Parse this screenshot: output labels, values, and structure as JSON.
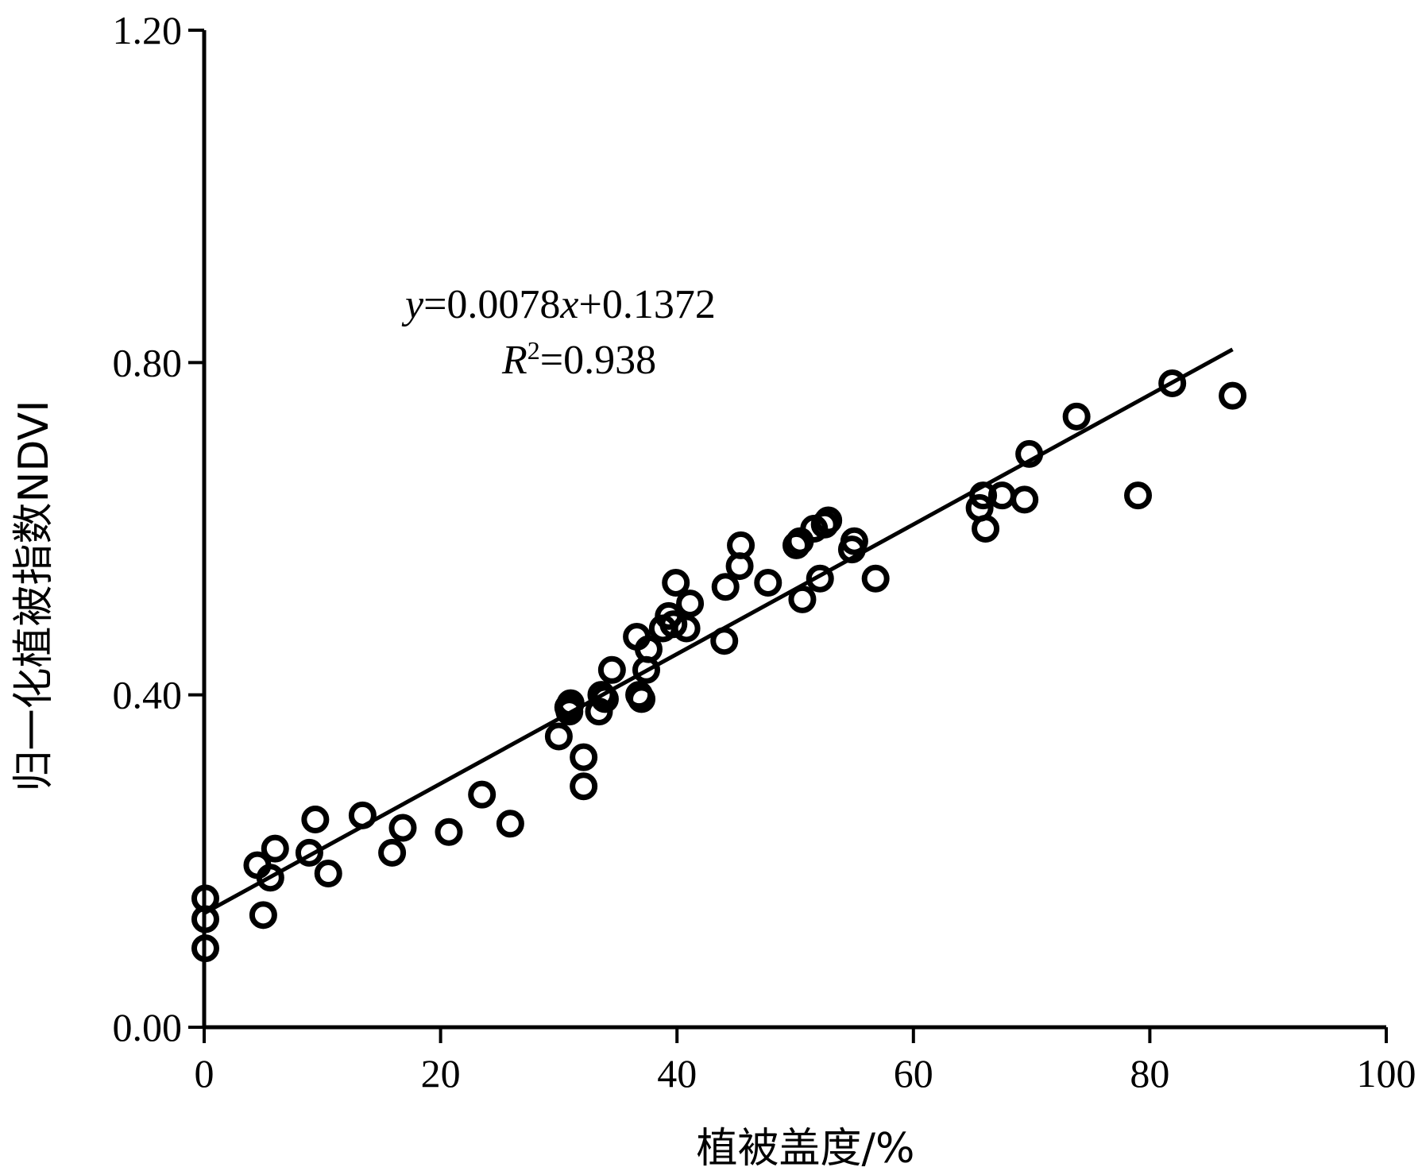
{
  "chart_data": {
    "type": "scatter",
    "title": "",
    "xlabel": "植被盖度/%",
    "ylabel": "归一化植被指数NDVI",
    "xlim": [
      0,
      100
    ],
    "ylim": [
      0,
      1.2
    ],
    "x_ticks": [
      "0",
      "20",
      "40",
      "60",
      "80",
      "100"
    ],
    "y_ticks": [
      "0.00",
      "0.40",
      "0.80",
      "1.20"
    ],
    "grid": false,
    "legend": "none",
    "marker": "open-circle",
    "color": "#000000",
    "annotation": {
      "equation_y": "y",
      "equation_mid": "=0.0078",
      "equation_x": "x",
      "equation_end": "+0.1372",
      "r2_R": "R",
      "r2_sup": "2",
      "r2_end": "=0.938"
    },
    "fit_line": {
      "slope": 0.0078,
      "intercept": 0.1372,
      "x_range": [
        0,
        87
      ]
    },
    "x": [
      0.1,
      0.1,
      0.1,
      4.5,
      5.0,
      5.6,
      6.0,
      8.9,
      9.4,
      10.5,
      13.4,
      15.9,
      16.8,
      20.7,
      23.5,
      25.9,
      30.0,
      30.8,
      30.9,
      31.0,
      32.1,
      32.1,
      33.4,
      33.6,
      33.9,
      34.5,
      36.6,
      36.8,
      37.0,
      37.4,
      37.6,
      38.8,
      39.3,
      39.7,
      39.9,
      40.8,
      41.1,
      44.0,
      44.1,
      45.3,
      45.4,
      47.7,
      50.1,
      50.4,
      50.6,
      51.6,
      52.1,
      52.5,
      52.8,
      54.8,
      55.0,
      56.8,
      65.6,
      65.9,
      66.1,
      67.5,
      69.4,
      69.8,
      73.8,
      79.0,
      81.9,
      87.0
    ],
    "y": [
      0.155,
      0.13,
      0.095,
      0.195,
      0.135,
      0.18,
      0.215,
      0.21,
      0.25,
      0.185,
      0.255,
      0.21,
      0.24,
      0.235,
      0.28,
      0.245,
      0.35,
      0.385,
      0.38,
      0.39,
      0.325,
      0.29,
      0.38,
      0.4,
      0.395,
      0.43,
      0.47,
      0.4,
      0.395,
      0.43,
      0.455,
      0.48,
      0.495,
      0.485,
      0.535,
      0.48,
      0.51,
      0.465,
      0.53,
      0.555,
      0.58,
      0.535,
      0.58,
      0.585,
      0.515,
      0.6,
      0.54,
      0.605,
      0.61,
      0.575,
      0.585,
      0.54,
      0.625,
      0.64,
      0.6,
      0.64,
      0.635,
      0.69,
      0.735,
      0.64,
      0.775,
      0.76
    ]
  }
}
